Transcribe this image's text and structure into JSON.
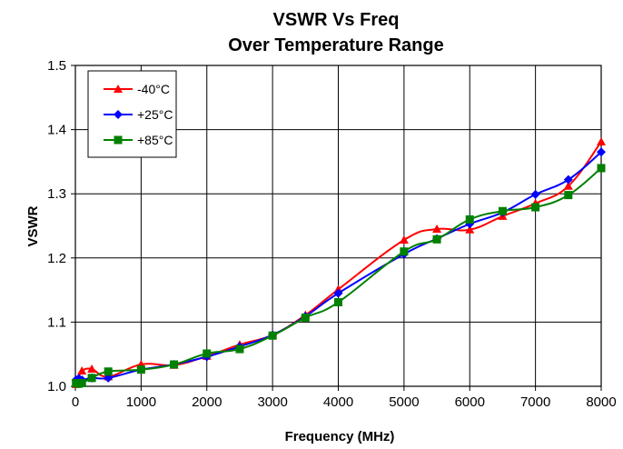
{
  "chart_data": {
    "type": "line",
    "title": "VSWR Vs Freq",
    "subtitle": "Over Temperature Range",
    "xlabel": "Frequency (MHz)",
    "ylabel": "VSWR",
    "xlim": [
      0,
      8000
    ],
    "ylim": [
      1.0,
      1.5
    ],
    "xticks": [
      "0",
      "1000",
      "2000",
      "3000",
      "4000",
      "5000",
      "6000",
      "7000",
      "8000"
    ],
    "yticks": [
      "1.0",
      "1.1",
      "1.2",
      "1.3",
      "1.4",
      "1.5"
    ],
    "grid": true,
    "legend_position": "top-left",
    "series": [
      {
        "name": "-40°C",
        "color": "#ff0000",
        "marker": "triangle",
        "x": [
          10,
          50,
          100,
          250,
          500,
          1000,
          1500,
          2000,
          2500,
          3000,
          3500,
          4000,
          5000,
          5500,
          6000,
          6500,
          7000,
          7500,
          8000
        ],
        "y": [
          1.003,
          1.012,
          1.024,
          1.027,
          1.015,
          1.034,
          1.033,
          1.047,
          1.065,
          1.08,
          1.111,
          1.151,
          1.228,
          1.245,
          1.244,
          1.265,
          1.285,
          1.312,
          1.381
        ]
      },
      {
        "name": "+25°C",
        "color": "#0000ff",
        "marker": "diamond",
        "x": [
          10,
          50,
          100,
          250,
          500,
          1000,
          1500,
          2000,
          2500,
          3000,
          3500,
          4000,
          5000,
          5500,
          6000,
          6500,
          7000,
          7500,
          8000
        ],
        "y": [
          1.01,
          1.012,
          1.01,
          1.013,
          1.013,
          1.026,
          1.034,
          1.046,
          1.062,
          1.08,
          1.109,
          1.145,
          1.206,
          1.23,
          1.253,
          1.271,
          1.299,
          1.322,
          1.365
        ]
      },
      {
        "name": "+85°C",
        "color": "#008000",
        "marker": "square",
        "x": [
          10,
          50,
          100,
          250,
          500,
          1000,
          1500,
          2000,
          2500,
          3000,
          3500,
          4000,
          5000,
          5500,
          6000,
          6500,
          7000,
          7500,
          8000
        ],
        "y": [
          1.005,
          1.004,
          1.005,
          1.013,
          1.023,
          1.026,
          1.034,
          1.051,
          1.058,
          1.079,
          1.107,
          1.131,
          1.21,
          1.229,
          1.26,
          1.273,
          1.279,
          1.298,
          1.34
        ]
      }
    ]
  }
}
